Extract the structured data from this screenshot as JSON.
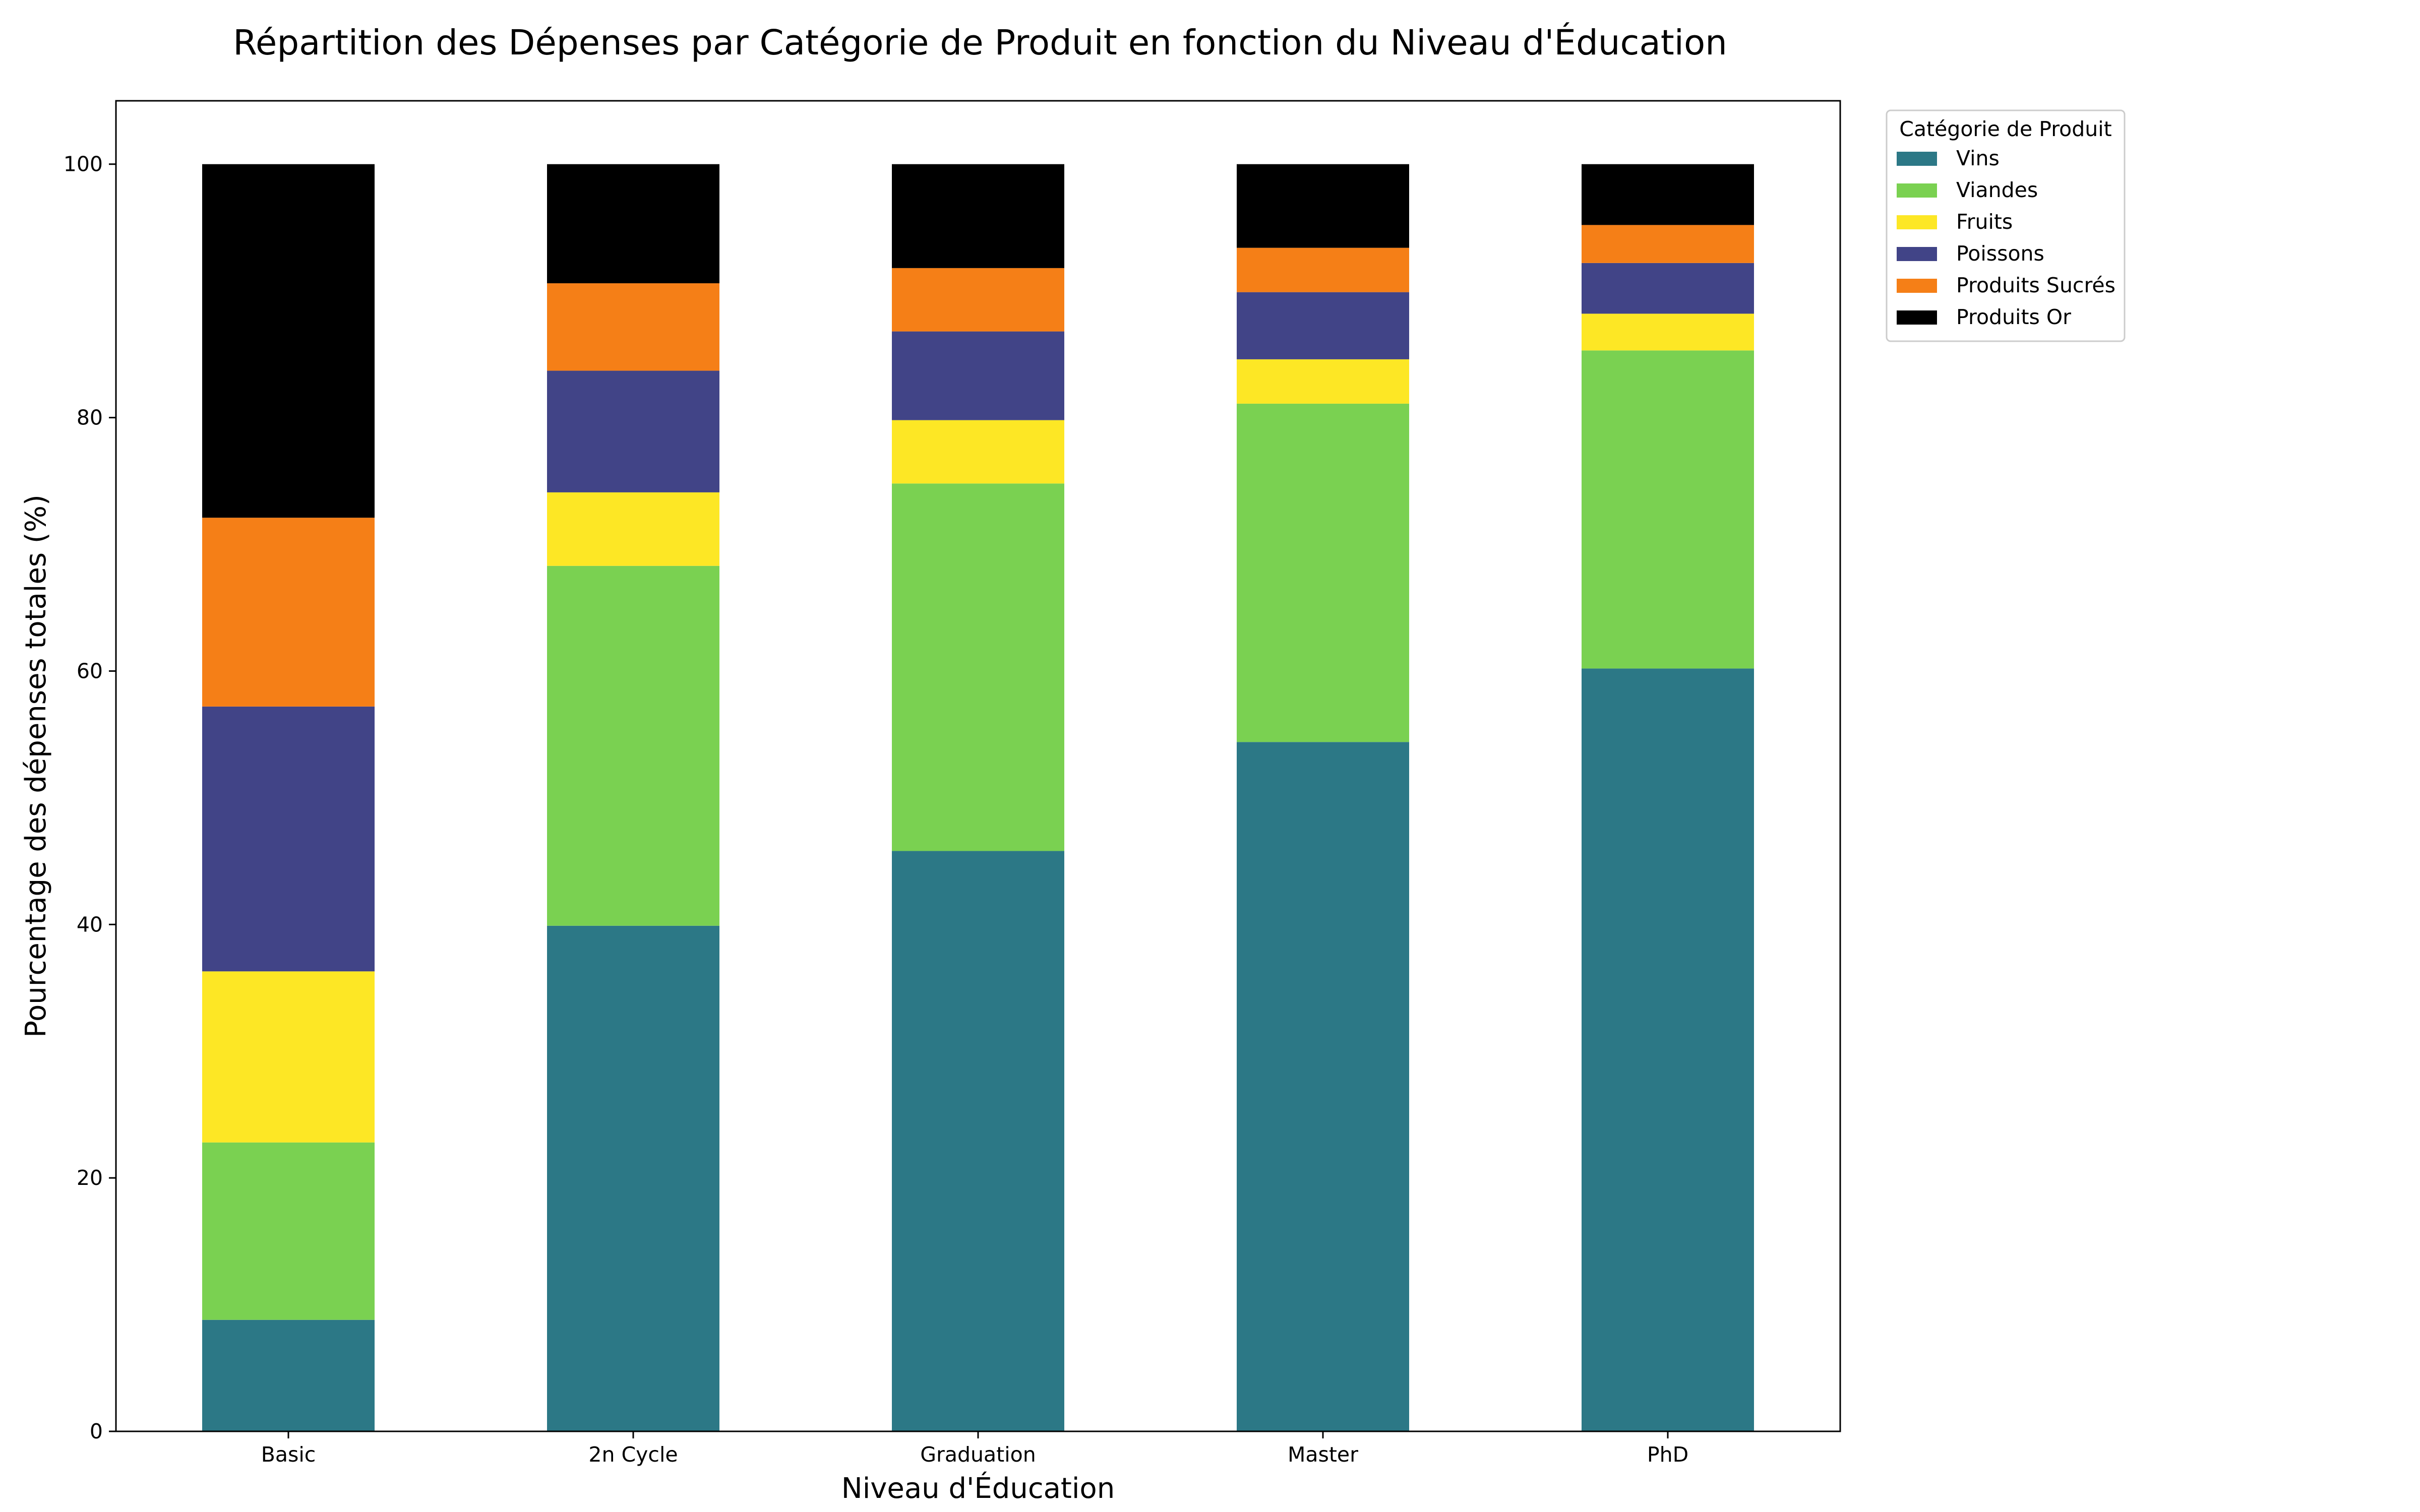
{
  "chart_data": {
    "type": "bar",
    "stacked": true,
    "title": "Répartition des Dépenses par Catégorie de Produit en fonction du Niveau d'Éducation",
    "xlabel": "Niveau d'Éducation",
    "ylabel": "Pourcentage des dépenses totales (%)",
    "categories": [
      "Basic",
      "2n Cycle",
      "Graduation",
      "Master",
      "PhD"
    ],
    "ylim": [
      0,
      105
    ],
    "yticks": [
      0,
      20,
      40,
      60,
      80,
      100
    ],
    "grid": false,
    "legend_title": "Catégorie de Produit",
    "legend_position": "outside top-right",
    "series": [
      {
        "name": "Vins",
        "color": "#2c7886",
        "values": [
          8.8,
          39.9,
          45.8,
          54.4,
          60.2
        ]
      },
      {
        "name": "Viandes",
        "color": "#7ad151",
        "values": [
          14.0,
          28.4,
          29.0,
          26.7,
          25.1
        ]
      },
      {
        "name": "Fruits",
        "color": "#fde725",
        "values": [
          13.5,
          5.8,
          5.0,
          3.5,
          2.9
        ]
      },
      {
        "name": "Poissons",
        "color": "#414487",
        "values": [
          20.9,
          9.6,
          7.0,
          5.3,
          4.0
        ]
      },
      {
        "name": "Produits Sucrés",
        "color": "#f57f17",
        "values": [
          14.9,
          6.9,
          5.0,
          3.5,
          3.0
        ]
      },
      {
        "name": "Produits Or",
        "color": "#000000",
        "values": [
          27.9,
          9.4,
          8.2,
          6.6,
          4.8
        ]
      }
    ]
  }
}
